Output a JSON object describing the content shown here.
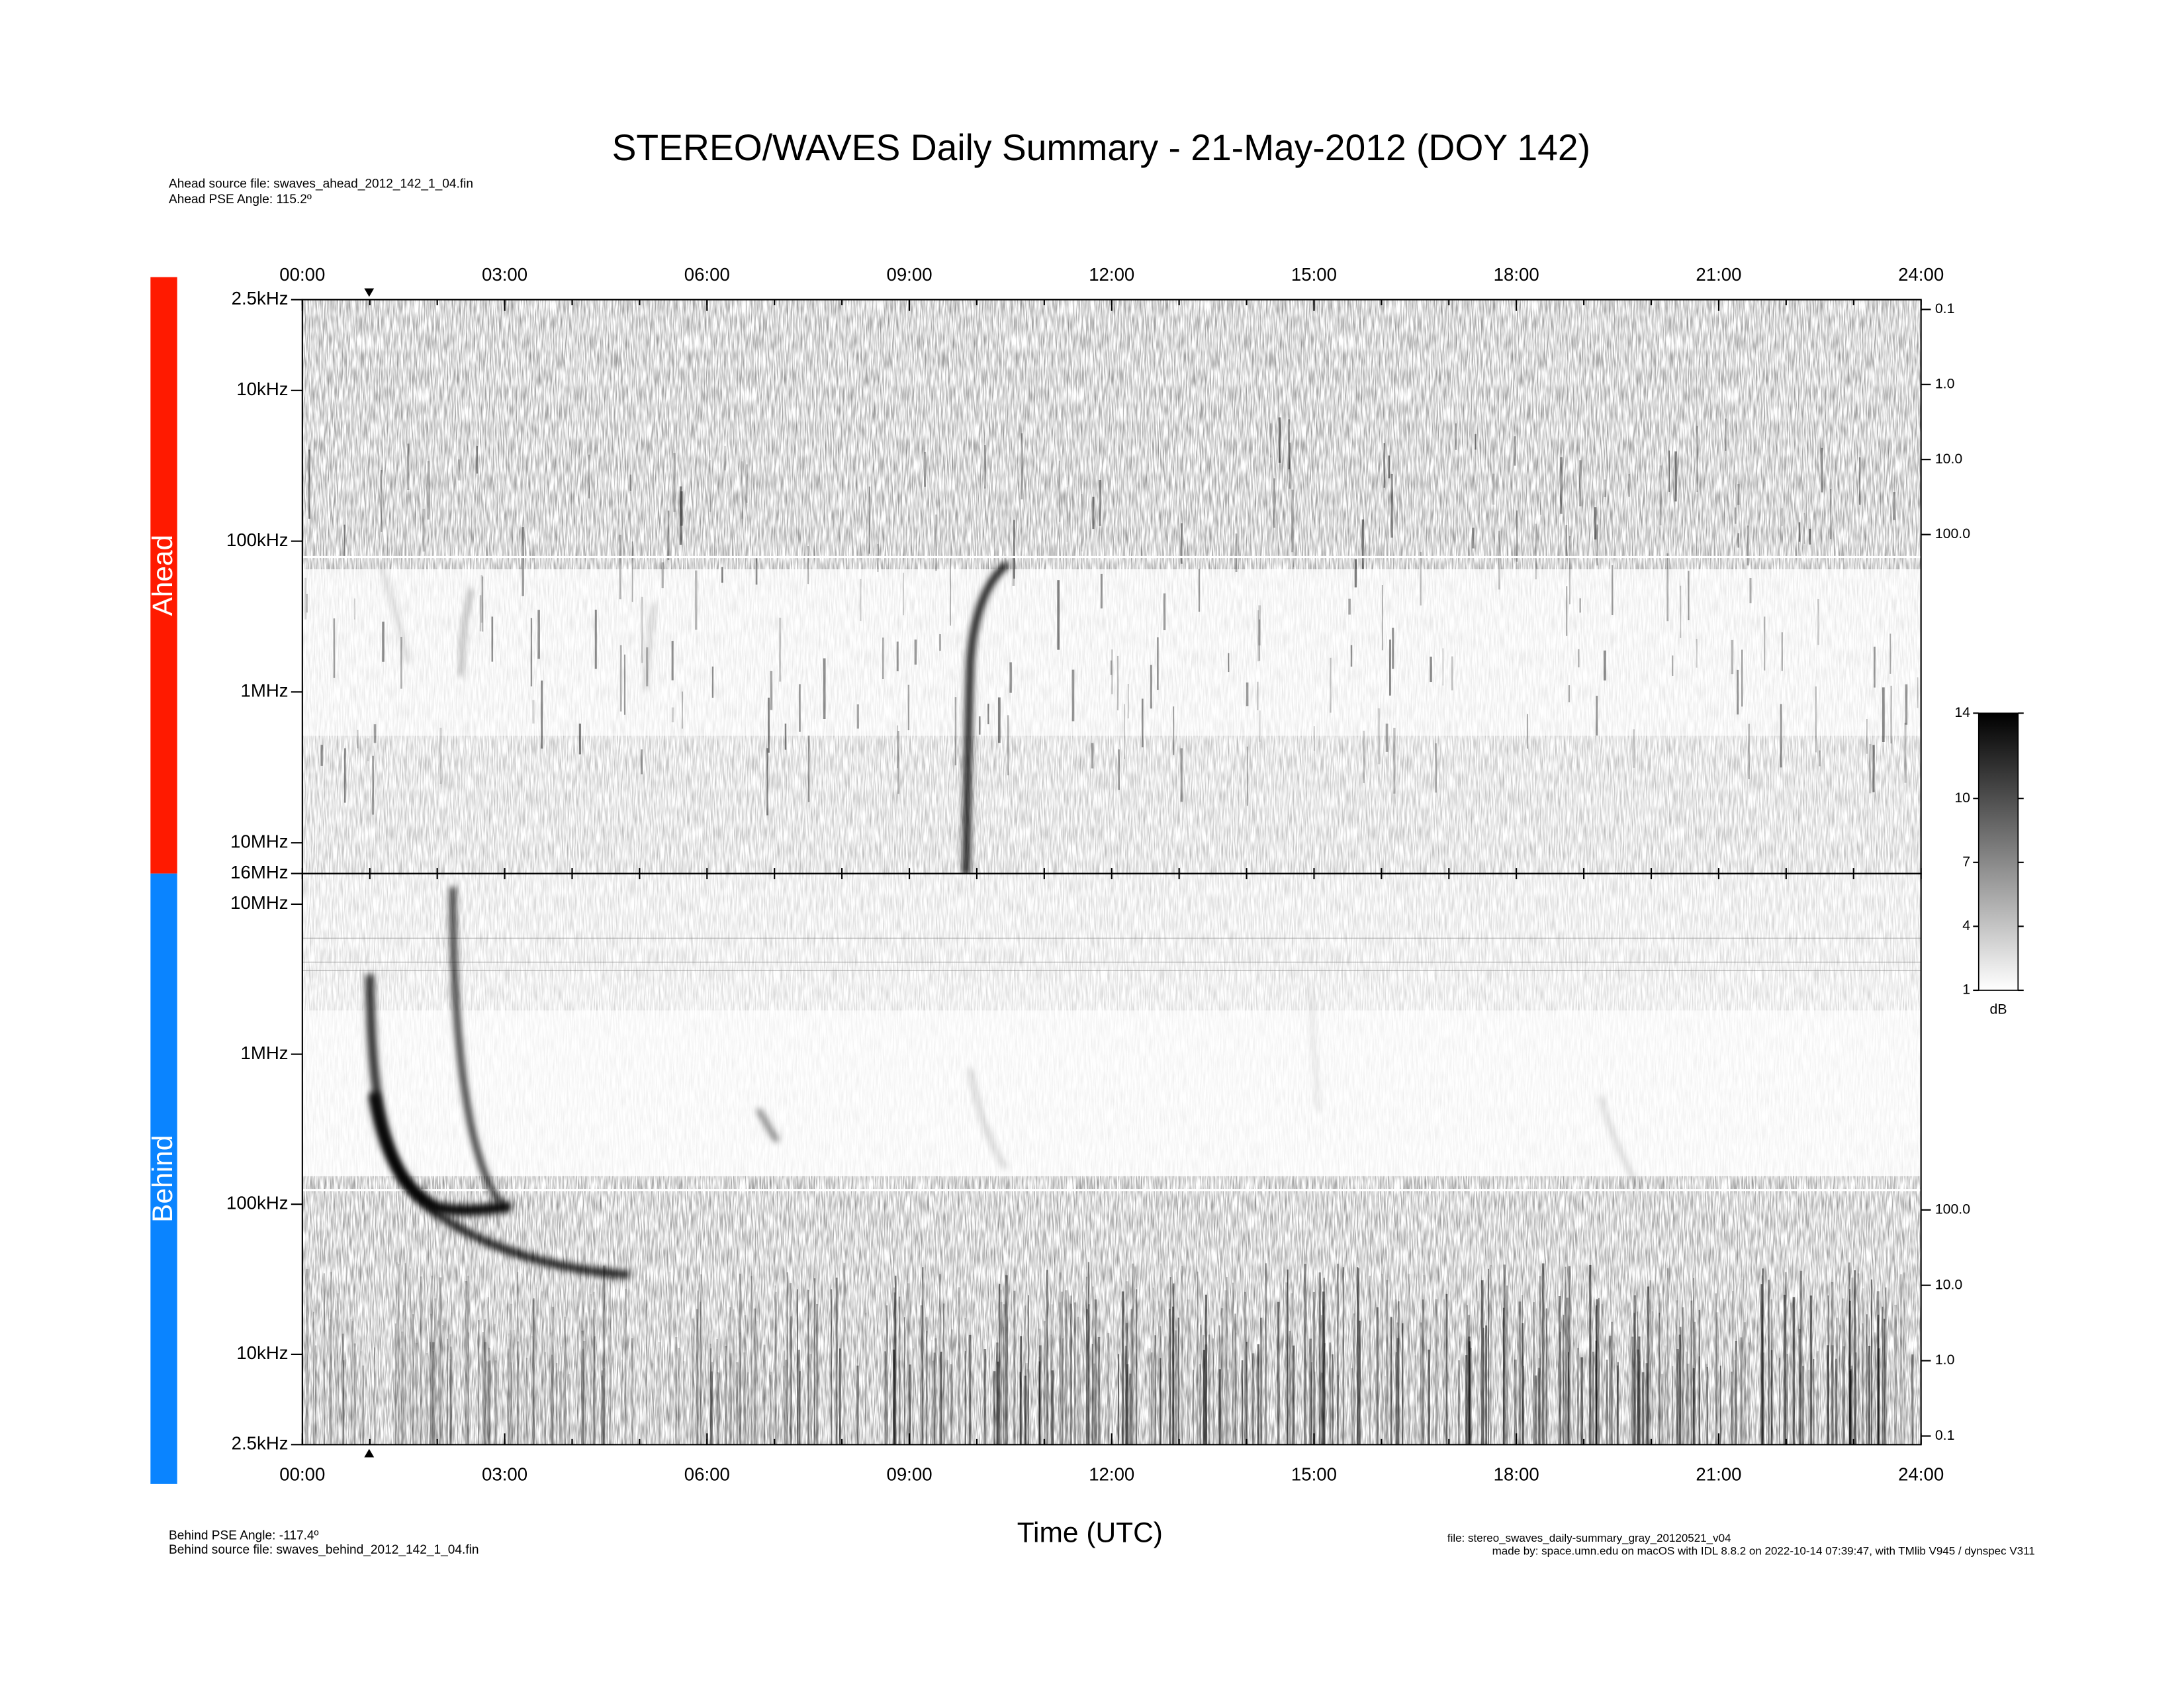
{
  "chart_data": {
    "type": "spectrogram",
    "title": "STEREO/WAVES Daily Summary - 21-May-2012 (DOY 142)",
    "x_label": "Time (UTC)",
    "xlim": [
      0,
      24
    ],
    "xticks": [
      {
        "value": 0,
        "label": "00:00"
      },
      {
        "value": 3,
        "label": "03:00"
      },
      {
        "value": 6,
        "label": "06:00"
      },
      {
        "value": 9,
        "label": "09:00"
      },
      {
        "value": 12,
        "label": "12:00"
      },
      {
        "value": 15,
        "label": "15:00"
      },
      {
        "value": 18,
        "label": "18:00"
      },
      {
        "value": 21,
        "label": "21:00"
      },
      {
        "value": 24,
        "label": "24:00"
      }
    ],
    "log_scale": true,
    "panels": [
      {
        "name": "Ahead",
        "color": "#ff1a00",
        "source_file": "Ahead source file: swaves_ahead_2012_142_1_04.fin",
        "pse_angle": "Ahead PSE Angle:  115.2º",
        "ylim": [
          16000,
          2.5
        ],
        "yticks": [
          {
            "value": 2.5,
            "label": "2.5kHz"
          },
          {
            "value": 10,
            "label": "10kHz"
          },
          {
            "value": 100,
            "label": "100kHz"
          },
          {
            "value": 1000,
            "label": "1MHz"
          },
          {
            "value": 10000,
            "label": "10MHz"
          },
          {
            "value": 16000,
            "label": "16MHz"
          }
        ],
        "y2lim": [
          3300000,
          0.074
        ],
        "y2ticks": [
          0.1,
          {
            "value": 1,
            "label": "1.0"
          },
          {
            "value": 10,
            "label": "10.0"
          },
          {
            "value": 100,
            "label": "100.0"
          }
        ]
      },
      {
        "name": "Behind",
        "color": "#0a84ff",
        "source_file": "Behind source file: swaves_behind_2012_142_1_04.fin",
        "pse_angle": "Behind PSE Angle: -117.4º",
        "ylim": [
          2.5,
          16000
        ],
        "yticks": [
          {
            "value": 2.5,
            "label": "2.5kHz"
          },
          {
            "value": 10,
            "label": "10kHz"
          },
          {
            "value": 100,
            "label": "100kHz"
          },
          {
            "value": 1000,
            "label": "1MHz"
          },
          {
            "value": 10000,
            "label": "10MHz"
          }
        ],
        "y2lim": [
          0.077,
          2900000
        ],
        "y2ticks": [
          0.1,
          {
            "value": 1,
            "label": "1.0"
          },
          {
            "value": 10,
            "label": "10.0"
          },
          {
            "value": 100,
            "label": "100.0"
          }
        ]
      }
    ],
    "colorbar": {
      "label": "dB",
      "lim": [
        1,
        14
      ],
      "ticks": [
        1,
        4,
        7,
        10,
        14
      ]
    },
    "footer": {
      "file": "file: stereo_swaves_daily-summary_gray_20120521_v04",
      "made_by": "made by: space.umn.edu on macOS with IDL 8.8.2 on 2022-10-14 07:39:47, with TMlib V945 / dynspec V311"
    }
  }
}
